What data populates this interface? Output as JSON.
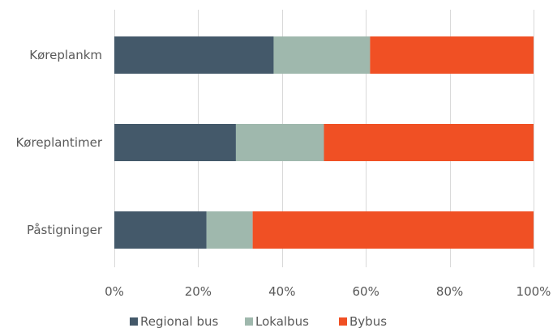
{
  "chart_data": {
    "type": "bar",
    "orientation": "horizontal",
    "stacked": "percent",
    "categories": [
      "Køreplankm",
      "Køreplantimer",
      "Påstigninger"
    ],
    "series": [
      {
        "name": "Regional bus",
        "color": "#44596a",
        "values": [
          38,
          29,
          22
        ]
      },
      {
        "name": "Lokalbus",
        "color": "#9fb8ad",
        "values": [
          23,
          21,
          11
        ]
      },
      {
        "name": "Bybus",
        "color": "#f05024",
        "values": [
          39,
          50,
          67
        ]
      }
    ],
    "xlim": [
      0,
      100
    ],
    "x_ticks": [
      "0%",
      "20%",
      "40%",
      "60%",
      "80%",
      "100%"
    ],
    "grid": "vertical",
    "legend": "bottom"
  }
}
